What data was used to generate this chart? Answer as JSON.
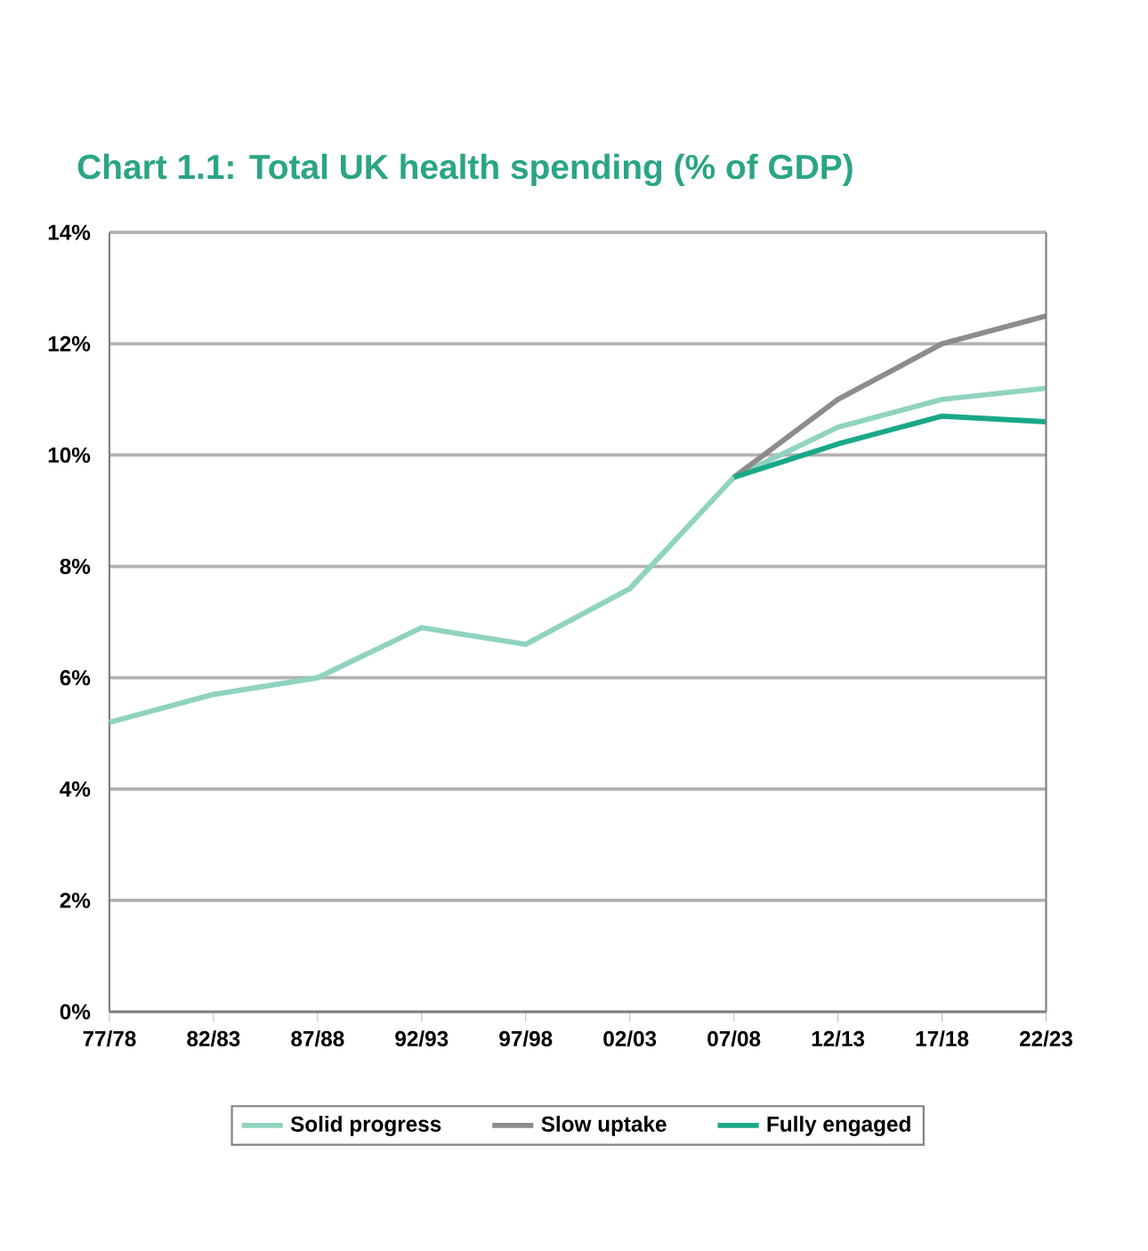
{
  "chart_data": {
    "type": "line",
    "title": "Chart 1.1: Total UK health spending (% of GDP)",
    "categories": [
      "77/78",
      "82/83",
      "87/88",
      "92/93",
      "97/98",
      "02/03",
      "07/08",
      "12/13",
      "17/18",
      "22/23"
    ],
    "series": [
      {
        "name": "Solid progress",
        "color": "#8fd3c0",
        "values": [
          5.2,
          5.7,
          6.0,
          6.9,
          6.6,
          7.6,
          9.6,
          10.5,
          11.0,
          11.2
        ]
      },
      {
        "name": "Slow uptake",
        "color": "#8c8c8c",
        "values": [
          null,
          null,
          null,
          null,
          null,
          null,
          9.6,
          11.0,
          12.0,
          12.5
        ]
      },
      {
        "name": "Fully engaged",
        "color": "#1aa88a",
        "values": [
          null,
          null,
          null,
          null,
          null,
          null,
          9.6,
          10.2,
          10.7,
          10.6
        ]
      }
    ],
    "ylim": [
      0,
      14
    ],
    "yticks": [
      {
        "value": 0,
        "label": "0%"
      },
      {
        "value": 2,
        "label": "2%"
      },
      {
        "value": 4,
        "label": "4%"
      },
      {
        "value": 6,
        "label": "6%"
      },
      {
        "value": 8,
        "label": "8%"
      },
      {
        "value": 10,
        "label": "10%"
      },
      {
        "value": 12,
        "label": "12%"
      },
      {
        "value": 14,
        "label": "14%"
      }
    ],
    "grid": "y",
    "legend": "bottom",
    "marker": "none",
    "line_style": "solid"
  }
}
